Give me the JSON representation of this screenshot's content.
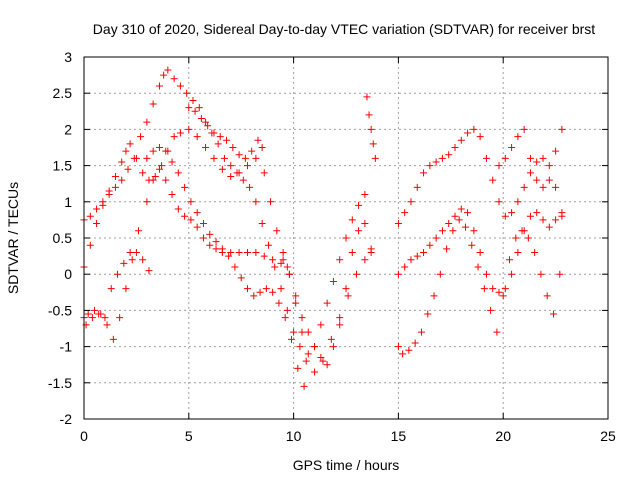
{
  "chart_data": {
    "type": "scatter",
    "title": "Day 310 of 2020, Sidereal Day-to-day VTEC variation (SDTVAR) for receiver brst",
    "xlabel": "GPS time / hours",
    "ylabel": "SDTVAR / TECUs",
    "xlim": [
      0,
      25
    ],
    "ylim": [
      -2,
      3
    ],
    "xticks": [
      0,
      5,
      10,
      15,
      20,
      25
    ],
    "yticks": [
      -2,
      -1.5,
      -1,
      -0.5,
      0,
      0.5,
      1,
      1.5,
      2,
      2.5,
      3
    ],
    "grid": true,
    "marker": "+",
    "color": "#ff0000",
    "series": [
      {
        "x": [
          0.0,
          0.3,
          0.6,
          0.9,
          1.2,
          1.5,
          1.8,
          2.1,
          2.4,
          2.7,
          3.0,
          3.3,
          3.6,
          3.8,
          4.0,
          4.3,
          4.6,
          4.9,
          5.2,
          5.5,
          5.8,
          6.1,
          6.4,
          6.7,
          7.0,
          7.3,
          7.6,
          7.9,
          8.2,
          8.5,
          8.8,
          9.1,
          9.4,
          9.7,
          10.0,
          10.3,
          10.6,
          11.0,
          11.4,
          11.8,
          12.2,
          12.6,
          13.0,
          13.4,
          13.7
        ],
        "y": [
          0.75,
          0.8,
          0.9,
          1.0,
          1.1,
          1.2,
          1.3,
          1.45,
          1.6,
          1.9,
          2.1,
          2.35,
          2.6,
          2.75,
          2.82,
          2.7,
          2.6,
          2.5,
          2.4,
          2.3,
          2.1,
          1.95,
          1.8,
          1.6,
          1.5,
          1.4,
          1.3,
          1.2,
          1.0,
          0.7,
          0.4,
          0.1,
          -0.2,
          -0.5,
          -0.8,
          -1.0,
          -1.2,
          -1.35,
          -1.2,
          -0.9,
          -0.6,
          -0.3,
          0.0,
          0.2,
          0.3
        ]
      },
      {
        "x": [
          0.0,
          0.3,
          0.6,
          0.9,
          1.2,
          1.5,
          1.8,
          2.0,
          2.2,
          2.5,
          2.8,
          3.1,
          3.4,
          3.7,
          4.0,
          4.3,
          4.6,
          5.0,
          5.4,
          5.8,
          6.2,
          6.6,
          7.0,
          7.4,
          7.8,
          8.2,
          8.5
        ],
        "y": [
          0.1,
          0.4,
          0.7,
          0.95,
          1.15,
          1.35,
          1.55,
          1.7,
          1.8,
          1.6,
          1.4,
          1.3,
          1.35,
          1.5,
          1.7,
          1.9,
          1.95,
          2.0,
          1.9,
          1.75,
          1.6,
          1.45,
          1.35,
          1.4,
          1.5,
          1.6,
          1.75
        ]
      },
      {
        "x": [
          0.0,
          0.2,
          0.5,
          0.8,
          1.1,
          1.4,
          1.7,
          2.0,
          2.3,
          2.6,
          3.0,
          3.3,
          3.6,
          3.9,
          4.2,
          4.5,
          4.8,
          5.1,
          5.4,
          5.7,
          6.0,
          6.3,
          6.6,
          7.0,
          7.4,
          7.8,
          8.2,
          8.6,
          9.0,
          9.4,
          9.7
        ],
        "y": [
          -0.6,
          -0.55,
          -0.5,
          -0.55,
          -0.7,
          -0.9,
          -0.6,
          -0.2,
          0.2,
          0.6,
          1.0,
          1.3,
          1.45,
          1.3,
          1.1,
          0.9,
          0.8,
          0.75,
          0.65,
          0.5,
          0.4,
          0.35,
          0.3,
          0.3,
          0.3,
          0.3,
          0.3,
          0.25,
          0.2,
          0.15,
          0.1
        ]
      },
      {
        "x": [
          0.1,
          0.4,
          0.7,
          1.0,
          1.3,
          1.6,
          1.9,
          2.2,
          2.5,
          2.8,
          3.1
        ],
        "y": [
          -0.7,
          -0.6,
          -0.55,
          -0.6,
          -0.2,
          0.0,
          0.15,
          0.3,
          0.3,
          0.2,
          0.05
        ]
      },
      {
        "x": [
          3.0,
          3.3,
          3.6,
          3.9,
          4.2,
          4.5,
          4.8,
          5.1,
          5.4,
          5.7,
          6.0,
          6.3,
          6.6,
          6.9,
          7.2,
          7.5,
          7.8,
          8.1,
          8.4,
          8.7,
          9.0,
          9.3,
          9.6,
          9.9,
          10.2,
          10.5
        ],
        "y": [
          1.6,
          1.7,
          1.75,
          1.7,
          1.55,
          1.4,
          1.2,
          1.0,
          0.85,
          0.7,
          0.55,
          0.45,
          0.35,
          0.25,
          0.1,
          -0.05,
          -0.2,
          -0.3,
          -0.25,
          -0.2,
          -0.25,
          -0.4,
          -0.6,
          -0.9,
          -1.3,
          -1.55
        ]
      },
      {
        "x": [
          5.0,
          5.3,
          5.6,
          5.9,
          6.2,
          6.5,
          6.8,
          7.1,
          7.4,
          7.7,
          8.0,
          8.3,
          8.6,
          8.9,
          9.2,
          9.5,
          9.8,
          10.1,
          10.4,
          10.7,
          11.0,
          11.3,
          11.6,
          11.9,
          12.2,
          12.5,
          12.8,
          13.1,
          13.4
        ],
        "y": [
          2.3,
          2.25,
          2.15,
          2.05,
          1.95,
          1.9,
          1.85,
          1.75,
          1.65,
          1.6,
          1.7,
          1.85,
          1.4,
          1.0,
          0.6,
          0.3,
          0.0,
          -0.4,
          -0.8,
          -1.1,
          -1.0,
          -0.7,
          -0.4,
          -0.1,
          0.2,
          0.5,
          0.75,
          0.95,
          1.1
        ]
      },
      {
        "x": [
          13.5,
          13.6,
          13.7,
          13.8,
          13.9
        ],
        "y": [
          2.45,
          2.2,
          2.0,
          1.8,
          1.6
        ]
      },
      {
        "x": [
          15.0,
          15.3,
          15.6,
          15.9,
          16.2,
          16.5,
          16.8,
          17.1,
          17.4,
          17.7,
          18.0,
          18.3,
          18.6,
          18.9,
          19.2,
          19.5,
          19.8,
          20.1,
          20.4,
          20.7,
          21.0,
          21.3,
          21.6,
          21.9,
          22.2,
          22.5,
          22.8
        ],
        "y": [
          0.7,
          0.85,
          1.0,
          1.2,
          1.4,
          1.5,
          1.55,
          1.6,
          1.65,
          1.75,
          1.85,
          1.95,
          2.0,
          1.9,
          1.6,
          1.3,
          1.0,
          0.8,
          0.85,
          1.0,
          1.2,
          1.4,
          1.55,
          1.6,
          1.5,
          1.2,
          0.8
        ]
      },
      {
        "x": [
          15.0,
          15.3,
          15.6,
          15.9,
          16.2,
          16.5,
          16.8,
          17.1,
          17.4,
          17.7,
          18.0,
          18.3,
          18.6,
          18.9,
          19.2,
          19.5,
          19.8,
          20.1,
          20.4,
          20.7,
          21.0,
          21.3,
          21.6,
          21.9,
          22.2,
          22.5,
          22.8
        ],
        "y": [
          0.0,
          0.1,
          0.2,
          0.25,
          0.3,
          0.4,
          0.5,
          0.6,
          0.7,
          0.8,
          0.9,
          0.85,
          0.6,
          0.3,
          0.0,
          -0.2,
          -0.25,
          -0.2,
          0.0,
          0.3,
          0.6,
          0.8,
          0.85,
          0.75,
          0.65,
          0.75,
          0.85
        ]
      },
      {
        "x": [
          15.0,
          15.2,
          15.5,
          15.8,
          16.1,
          16.4,
          16.7,
          17.0,
          17.3,
          17.6,
          17.9,
          18.2,
          18.5,
          18.8,
          19.1,
          19.4,
          19.7,
          20.0,
          20.3,
          20.6,
          20.9,
          21.2,
          21.5,
          21.8,
          22.1,
          22.4,
          22.7
        ],
        "y": [
          -1.0,
          -1.1,
          -1.05,
          -0.95,
          -0.8,
          -0.55,
          -0.3,
          0.0,
          0.35,
          0.6,
          0.75,
          0.65,
          0.4,
          0.1,
          -0.2,
          -0.5,
          -0.8,
          -0.3,
          0.2,
          0.5,
          0.6,
          0.5,
          0.3,
          0.0,
          -0.3,
          -0.55,
          0.0
        ]
      },
      {
        "x": [
          19.8,
          20.1,
          20.4,
          20.7,
          21.0,
          21.3,
          21.6,
          21.9,
          22.2,
          22.5,
          22.8
        ],
        "y": [
          1.5,
          1.6,
          1.75,
          1.9,
          2.0,
          1.6,
          1.3,
          1.2,
          1.3,
          1.7,
          2.0
        ]
      },
      {
        "x": [
          9.5,
          9.8,
          10.1,
          10.4,
          10.7,
          11.0,
          11.3,
          11.6,
          11.9,
          12.2,
          12.5,
          12.8,
          13.1,
          13.4,
          13.7
        ],
        "y": [
          0.2,
          0.0,
          -0.3,
          -0.6,
          -0.8,
          -1.0,
          -1.15,
          -1.25,
          -1.0,
          -0.7,
          -0.2,
          0.3,
          0.6,
          0.7,
          0.35
        ]
      }
    ]
  }
}
